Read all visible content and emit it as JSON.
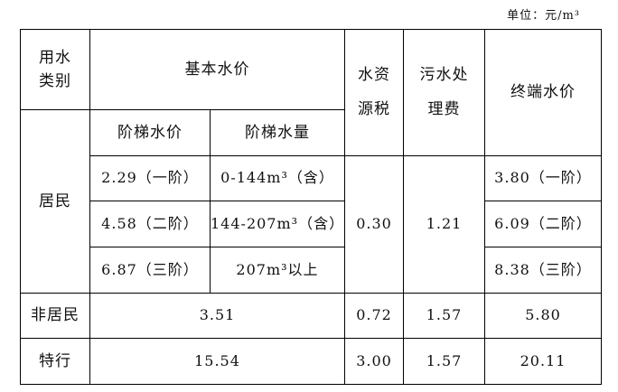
{
  "unit": "单位：元/m³",
  "headers": {
    "category": "用水\n类别",
    "basic_price": "基本水价",
    "resource_tax": "水资\n源税",
    "sewage_fee": "污水处\n理费",
    "terminal_price": "终端水价",
    "tier_price": "阶梯水价",
    "tier_volume": "阶梯水量"
  },
  "residential": {
    "label": "居民",
    "tiers": [
      {
        "price": "2.29（一阶）",
        "volume": "0-144m³（含）",
        "terminal": "3.80（一阶）"
      },
      {
        "price": "4.58（二阶）",
        "volume": "144-207m³（含）",
        "terminal": "6.09（二阶）"
      },
      {
        "price": "6.87（三阶）",
        "volume": "207m³以上",
        "terminal": "8.38（三阶）"
      }
    ],
    "resource_tax": "0.30",
    "sewage_fee": "1.21"
  },
  "non_residential": {
    "label": "非居民",
    "basic": "3.51",
    "resource_tax": "0.72",
    "sewage_fee": "1.57",
    "terminal": "5.80"
  },
  "special": {
    "label": "特行",
    "basic": "15.54",
    "resource_tax": "3.00",
    "sewage_fee": "1.57",
    "terminal": "20.11"
  }
}
